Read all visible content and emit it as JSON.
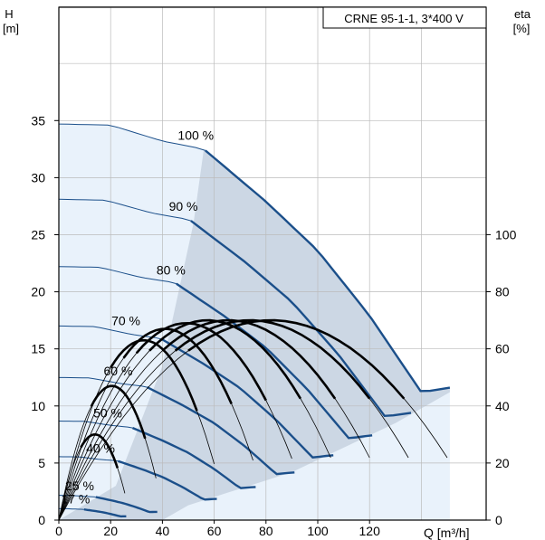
{
  "chart_data": {
    "type": "line",
    "title": "CRNE 95-1-1, 3*400 V",
    "ylabel_left": "H",
    "ylabel_left_unit": "[m]",
    "ylabel_right": "eta",
    "ylabel_right_unit": "[%]",
    "xlabel": "Q [m³/h]",
    "xlim": [
      0,
      160
    ],
    "ylim_left": [
      0,
      45
    ],
    "ylim_right": [
      0,
      140
    ],
    "x_ticks": [
      "0",
      "20",
      "40",
      "60",
      "80",
      "100",
      "120"
    ],
    "y_ticks_left": [
      "0",
      "5",
      "10",
      "15",
      "20",
      "25",
      "30",
      "35"
    ],
    "y_ticks_right": [
      "0",
      "20",
      "40",
      "60",
      "80",
      "100"
    ],
    "grid": true,
    "colors": {
      "head_curve": "#1b4f8a",
      "efficiency_curve": "#000000",
      "operating_area": "#ccd7e4",
      "light_area": "#e9f2fb",
      "grid": "#bbbbbb"
    },
    "speed_curves": [
      {
        "name": "100 %",
        "speed": 1.0,
        "max_flow": 151,
        "points": [
          [
            0,
            34.7
          ],
          [
            20,
            34.6
          ],
          [
            40,
            33.2
          ],
          [
            56,
            32.5
          ],
          [
            80,
            27.9
          ],
          [
            100,
            23.6
          ],
          [
            120,
            17.9
          ],
          [
            140,
            11.2
          ],
          [
            151,
            11.6
          ]
        ]
      },
      {
        "name": "90 %",
        "speed": 0.9,
        "max_flow": 136
      },
      {
        "name": "80 %",
        "speed": 0.8,
        "max_flow": 121
      },
      {
        "name": "70 %",
        "speed": 0.7,
        "max_flow": 106
      },
      {
        "name": "60 %",
        "speed": 0.6,
        "max_flow": 91
      },
      {
        "name": "50 %",
        "speed": 0.5,
        "max_flow": 76
      },
      {
        "name": "40 %",
        "speed": 0.4,
        "max_flow": 61
      },
      {
        "name": "25 %",
        "speed": 0.25,
        "max_flow": 38
      },
      {
        "name": "17 %",
        "speed": 0.17,
        "max_flow": 26
      }
    ],
    "efficiency_curves": [
      {
        "speed": 1.0,
        "peak_eta": 70
      },
      {
        "speed": 0.9,
        "peak_eta": 70
      },
      {
        "speed": 0.8,
        "peak_eta": 70
      },
      {
        "speed": 0.7,
        "peak_eta": 70
      },
      {
        "speed": 0.6,
        "peak_eta": 69
      },
      {
        "speed": 0.5,
        "peak_eta": 67
      },
      {
        "speed": 0.4,
        "peak_eta": 63
      },
      {
        "speed": 0.25,
        "peak_eta": 47
      },
      {
        "speed": 0.17,
        "peak_eta": 30
      }
    ]
  }
}
